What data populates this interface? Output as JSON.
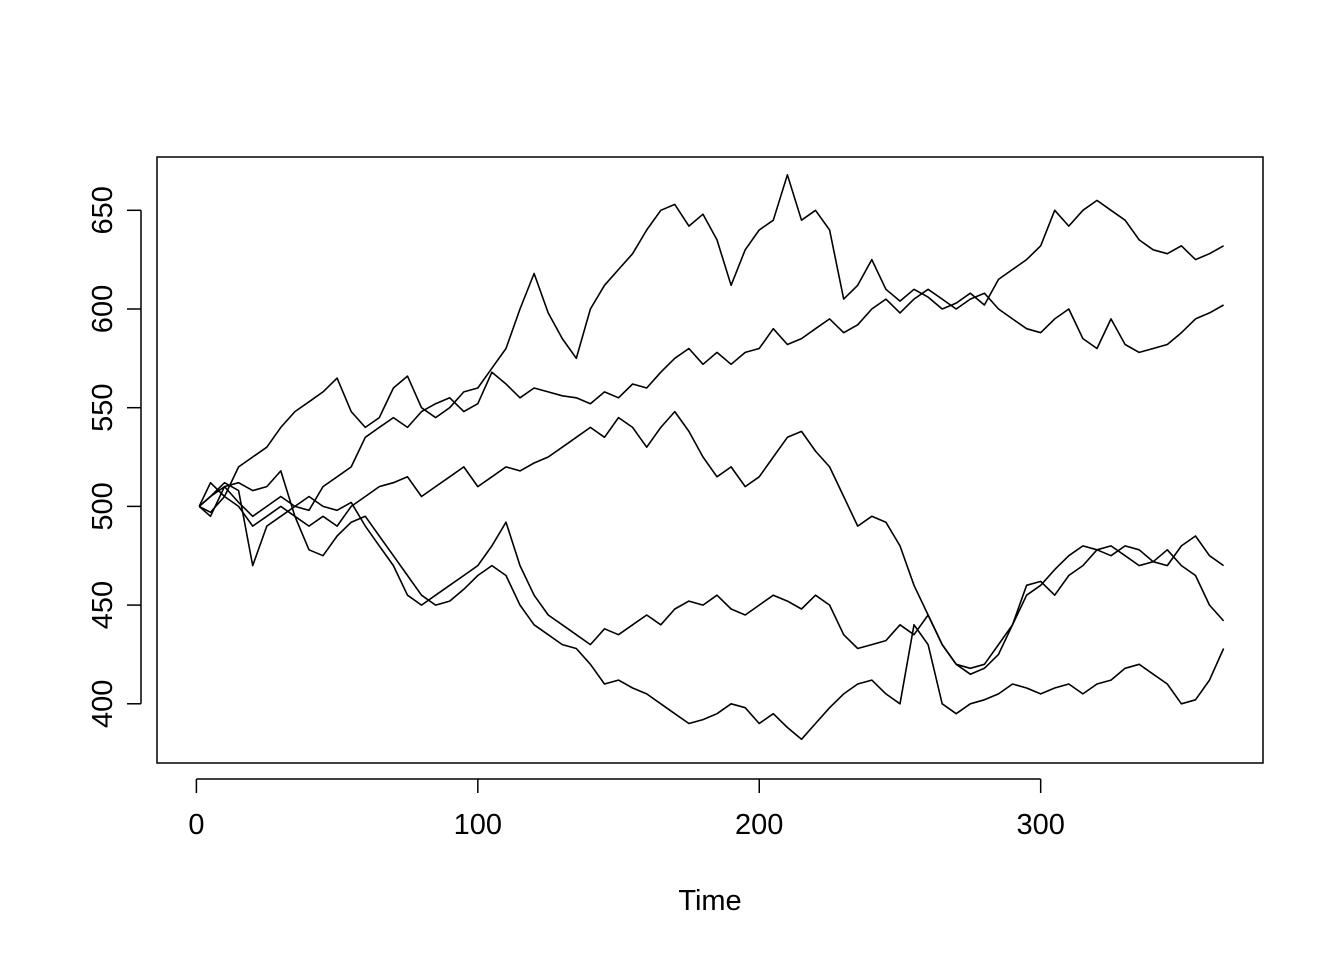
{
  "chart_data": {
    "type": "line",
    "title": "",
    "xlabel": "Time",
    "ylabel": "",
    "xlim": [
      -14,
      379
    ],
    "ylim": [
      370,
      677
    ],
    "x_ticks": [
      0,
      100,
      200,
      300
    ],
    "y_ticks": [
      400,
      450,
      500,
      550,
      600,
      650
    ],
    "grid": false,
    "legend": "none",
    "line_color": "#000000",
    "series": [
      {
        "x": [
          1,
          5,
          10,
          15,
          20,
          25,
          30,
          35,
          40,
          45,
          50,
          55,
          60,
          65,
          70,
          75,
          80,
          85,
          90,
          95,
          100,
          105,
          110,
          115,
          120,
          125,
          130,
          135,
          140,
          145,
          150,
          155,
          160,
          165,
          170,
          175,
          180,
          185,
          190,
          195,
          200,
          205,
          210,
          215,
          220,
          225,
          230,
          235,
          240,
          245,
          250,
          255,
          260,
          265,
          270,
          275,
          280,
          285,
          290,
          295,
          300,
          305,
          310,
          315,
          320,
          325,
          330,
          335,
          340,
          345,
          350,
          355,
          360,
          365
        ],
        "values": [
          500,
          512,
          505,
          520,
          525,
          530,
          540,
          548,
          553,
          558,
          565,
          548,
          540,
          545,
          560,
          566,
          550,
          545,
          550,
          558,
          560,
          570,
          580,
          600,
          618,
          598,
          585,
          575,
          600,
          612,
          620,
          628,
          640,
          650,
          653,
          642,
          648,
          635,
          612,
          630,
          640,
          645,
          668,
          645,
          650,
          640,
          605,
          612,
          625,
          610,
          604,
          610,
          606,
          600,
          603,
          608,
          602,
          615,
          620,
          625,
          632,
          650,
          642,
          650,
          655,
          650,
          645,
          635,
          630,
          628,
          632,
          625,
          628,
          632
        ]
      },
      {
        "x": [
          1,
          5,
          10,
          15,
          20,
          25,
          30,
          35,
          40,
          45,
          50,
          55,
          60,
          65,
          70,
          75,
          80,
          85,
          90,
          95,
          100,
          105,
          110,
          115,
          120,
          125,
          130,
          135,
          140,
          145,
          150,
          155,
          160,
          165,
          170,
          175,
          180,
          185,
          190,
          195,
          200,
          205,
          210,
          215,
          220,
          225,
          230,
          235,
          240,
          245,
          250,
          255,
          260,
          265,
          270,
          275,
          280,
          285,
          290,
          295,
          300,
          305,
          310,
          315,
          320,
          325,
          330,
          335,
          340,
          345,
          350,
          355,
          360,
          365
        ],
        "values": [
          500,
          495,
          510,
          502,
          495,
          500,
          505,
          500,
          498,
          510,
          515,
          520,
          535,
          540,
          545,
          540,
          548,
          552,
          555,
          548,
          552,
          568,
          562,
          555,
          560,
          558,
          556,
          555,
          552,
          558,
          555,
          562,
          560,
          568,
          575,
          580,
          572,
          578,
          572,
          578,
          580,
          590,
          582,
          585,
          590,
          595,
          588,
          592,
          600,
          605,
          598,
          605,
          610,
          605,
          600,
          605,
          608,
          600,
          595,
          590,
          588,
          595,
          600,
          585,
          580,
          595,
          582,
          578,
          580,
          582,
          588,
          595,
          598,
          602
        ]
      },
      {
        "x": [
          1,
          5,
          10,
          15,
          20,
          25,
          30,
          35,
          40,
          45,
          50,
          55,
          60,
          65,
          70,
          75,
          80,
          85,
          90,
          95,
          100,
          105,
          110,
          115,
          120,
          125,
          130,
          135,
          140,
          145,
          150,
          155,
          160,
          165,
          170,
          175,
          180,
          185,
          190,
          195,
          200,
          205,
          210,
          215,
          220,
          225,
          230,
          235,
          240,
          245,
          250,
          255,
          260,
          265,
          270,
          275,
          280,
          285,
          290,
          295,
          300,
          305,
          310,
          315,
          320,
          325,
          330,
          335,
          340,
          345,
          350,
          355,
          360,
          365
        ],
        "values": [
          500,
          497,
          505,
          500,
          490,
          495,
          500,
          495,
          490,
          495,
          490,
          500,
          505,
          510,
          512,
          515,
          505,
          510,
          515,
          520,
          510,
          515,
          520,
          518,
          522,
          525,
          530,
          535,
          540,
          535,
          545,
          540,
          530,
          540,
          548,
          538,
          525,
          515,
          520,
          510,
          515,
          525,
          535,
          538,
          528,
          520,
          505,
          490,
          495,
          492,
          480,
          460,
          445,
          430,
          420,
          418,
          420,
          430,
          440,
          455,
          460,
          468,
          475,
          480,
          478,
          475,
          480,
          478,
          472,
          470,
          480,
          485,
          475,
          470
        ]
      },
      {
        "x": [
          1,
          5,
          10,
          15,
          20,
          25,
          30,
          35,
          40,
          45,
          50,
          55,
          60,
          65,
          70,
          75,
          80,
          85,
          90,
          95,
          100,
          105,
          110,
          115,
          120,
          125,
          130,
          135,
          140,
          145,
          150,
          155,
          160,
          165,
          170,
          175,
          180,
          185,
          190,
          195,
          200,
          205,
          210,
          215,
          220,
          225,
          230,
          235,
          240,
          245,
          250,
          255,
          260,
          265,
          270,
          275,
          280,
          285,
          290,
          295,
          300,
          305,
          310,
          315,
          320,
          325,
          330,
          335,
          340,
          345,
          350,
          355,
          360,
          365
        ],
        "values": [
          500,
          505,
          512,
          508,
          470,
          490,
          495,
          500,
          505,
          500,
          498,
          502,
          490,
          480,
          470,
          455,
          450,
          455,
          460,
          465,
          470,
          480,
          492,
          470,
          455,
          445,
          440,
          435,
          430,
          438,
          435,
          440,
          445,
          440,
          448,
          452,
          450,
          455,
          448,
          445,
          450,
          455,
          452,
          448,
          455,
          450,
          435,
          428,
          430,
          432,
          440,
          435,
          445,
          430,
          420,
          415,
          418,
          425,
          440,
          460,
          462,
          455,
          465,
          470,
          478,
          480,
          475,
          470,
          472,
          478,
          470,
          465,
          450,
          442
        ]
      },
      {
        "x": [
          1,
          5,
          10,
          15,
          20,
          25,
          30,
          35,
          40,
          45,
          50,
          55,
          60,
          65,
          70,
          75,
          80,
          85,
          90,
          95,
          100,
          105,
          110,
          115,
          120,
          125,
          130,
          135,
          140,
          145,
          150,
          155,
          160,
          165,
          170,
          175,
          180,
          185,
          190,
          195,
          200,
          205,
          210,
          215,
          220,
          225,
          230,
          235,
          240,
          245,
          250,
          255,
          260,
          265,
          270,
          275,
          280,
          285,
          290,
          295,
          300,
          305,
          310,
          315,
          320,
          325,
          330,
          335,
          340,
          345,
          350,
          355,
          360,
          365
        ],
        "values": [
          500,
          505,
          510,
          512,
          508,
          510,
          518,
          495,
          478,
          475,
          485,
          492,
          495,
          485,
          475,
          465,
          455,
          450,
          452,
          458,
          465,
          470,
          465,
          450,
          440,
          435,
          430,
          428,
          420,
          410,
          412,
          408,
          405,
          400,
          395,
          390,
          392,
          395,
          400,
          398,
          390,
          395,
          388,
          382,
          390,
          398,
          405,
          410,
          412,
          405,
          400,
          440,
          430,
          400,
          395,
          400,
          402,
          405,
          410,
          408,
          405,
          408,
          410,
          405,
          410,
          412,
          418,
          420,
          415,
          410,
          400,
          402,
          412,
          428
        ]
      }
    ]
  }
}
